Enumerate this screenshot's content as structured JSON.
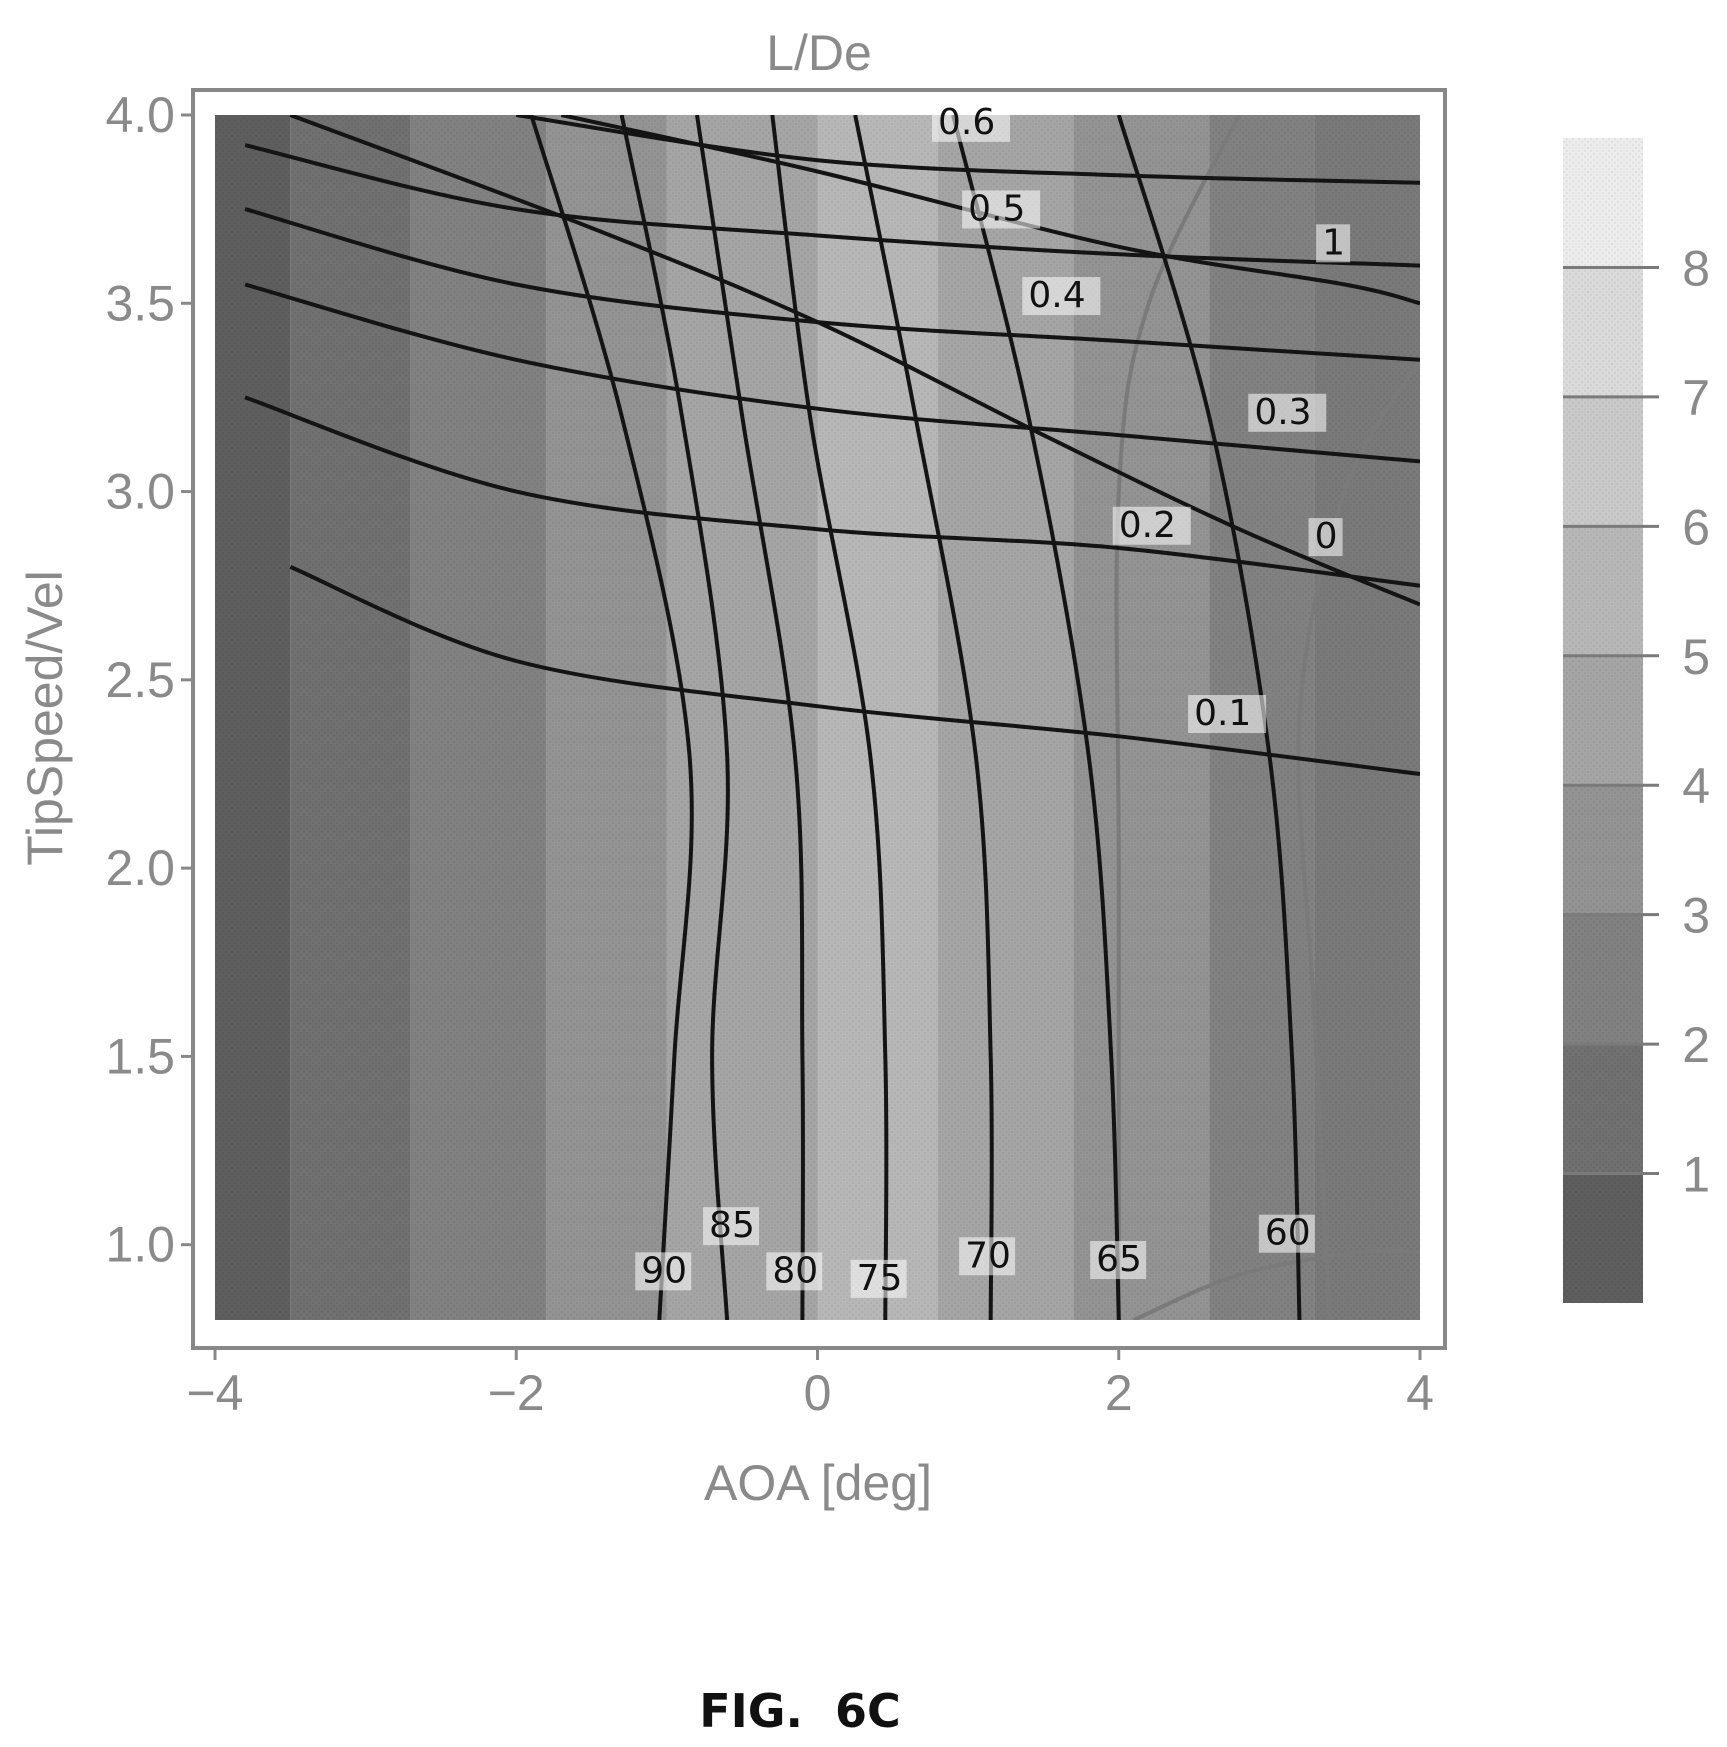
{
  "chart_data": {
    "type": "contour",
    "title": "L/De",
    "xlabel": "AOA [deg]",
    "ylabel": "TipSpeed/Vel",
    "xlim": [
      -4,
      4
    ],
    "ylim": [
      0.8,
      4.0
    ],
    "x_ticks": [
      "−4",
      "−2",
      "0",
      "2",
      "4"
    ],
    "x_tick_values": [
      -4,
      -2,
      0,
      2,
      4
    ],
    "y_ticks": [
      "1.0",
      "1.5",
      "2.0",
      "2.5",
      "3.0",
      "3.5",
      "4.0"
    ],
    "y_tick_values": [
      1.0,
      1.5,
      2.0,
      2.5,
      3.0,
      3.5,
      4.0
    ],
    "filled_field": {
      "name": "L/De",
      "bands": [
        {
          "x_from": -4.0,
          "x_to": -3.5,
          "level": 0.5
        },
        {
          "x_from": -3.5,
          "x_to": -2.7,
          "level": 1.5
        },
        {
          "x_from": -2.7,
          "x_to": -1.8,
          "level": 2.5
        },
        {
          "x_from": -1.8,
          "x_to": -1.0,
          "level": 3.5
        },
        {
          "x_from": -1.0,
          "x_to": 0.0,
          "level": 4.5
        },
        {
          "x_from": 0.0,
          "x_to": 0.8,
          "level": 5.5
        },
        {
          "x_from": 0.8,
          "x_to": 1.7,
          "level": 4.5
        },
        {
          "x_from": 1.7,
          "x_to": 2.6,
          "level": 3.5
        },
        {
          "x_from": 2.6,
          "x_to": 3.3,
          "level": 2.5
        },
        {
          "x_from": 3.3,
          "x_to": 4.0,
          "level": 2.0
        }
      ]
    },
    "colorbar": {
      "ticks": [
        "1",
        "2",
        "3",
        "4",
        "5",
        "6",
        "7",
        "8"
      ],
      "tick_values": [
        1,
        2,
        3,
        4,
        5,
        6,
        7,
        8
      ],
      "range": [
        0,
        9
      ]
    },
    "contour_sets": [
      {
        "kind": "near-vertical",
        "levels": [
          {
            "label": "90",
            "points": [
              [
                -1.05,
                0.8
              ],
              [
                -0.95,
                1.5
              ],
              [
                -0.85,
                2.3
              ],
              [
                -1.3,
                3.2
              ],
              [
                -1.9,
                4.0
              ]
            ],
            "label_at": [
              -1.17,
              0.9
            ]
          },
          {
            "label": "85",
            "points": [
              [
                -0.6,
                0.8
              ],
              [
                -0.7,
                1.5
              ],
              [
                -0.6,
                2.3
              ],
              [
                -0.9,
                3.2
              ],
              [
                -1.3,
                4.0
              ]
            ],
            "label_at": [
              -0.72,
              1.02
            ]
          },
          {
            "label": "80",
            "points": [
              [
                -0.1,
                0.8
              ],
              [
                -0.1,
                1.5
              ],
              [
                -0.15,
                2.3
              ],
              [
                -0.5,
                3.2
              ],
              [
                -0.8,
                4.0
              ]
            ],
            "label_at": [
              -0.3,
              0.9
            ]
          },
          {
            "label": "75",
            "points": [
              [
                0.45,
                0.8
              ],
              [
                0.45,
                1.5
              ],
              [
                0.35,
                2.3
              ],
              [
                -0.05,
                3.2
              ],
              [
                -0.3,
                4.0
              ]
            ],
            "label_at": [
              0.26,
              0.88
            ]
          },
          {
            "label": "70",
            "points": [
              [
                1.15,
                0.8
              ],
              [
                1.15,
                1.5
              ],
              [
                1.05,
                2.3
              ],
              [
                0.65,
                3.2
              ],
              [
                0.25,
                4.0
              ]
            ],
            "label_at": [
              0.98,
              0.94
            ]
          },
          {
            "label": "65",
            "points": [
              [
                2.0,
                0.8
              ],
              [
                1.95,
                1.5
              ],
              [
                1.8,
                2.3
              ],
              [
                1.4,
                3.2
              ],
              [
                0.9,
                4.0
              ]
            ],
            "label_at": [
              1.85,
              0.93
            ]
          },
          {
            "label": "60",
            "points": [
              [
                3.2,
                0.8
              ],
              [
                3.15,
                1.5
              ],
              [
                3.0,
                2.3
              ],
              [
                2.6,
                3.2
              ],
              [
                2.0,
                4.0
              ]
            ],
            "label_at": [
              2.97,
              1.0
            ]
          }
        ]
      },
      {
        "kind": "near-horizontal",
        "levels": [
          {
            "label": "0",
            "points": [
              [
                -3.5,
                4.0
              ],
              [
                -1.5,
                3.7
              ],
              [
                0.0,
                3.45
              ],
              [
                1.5,
                3.15
              ],
              [
                2.8,
                2.9
              ],
              [
                4.0,
                2.7
              ]
            ],
            "label_at": [
              3.3,
              2.85
            ]
          },
          {
            "label": "0.1",
            "points": [
              [
                -3.5,
                2.8
              ],
              [
                -2.0,
                2.55
              ],
              [
                0.0,
                2.43
              ],
              [
                2.0,
                2.35
              ],
              [
                4.0,
                2.25
              ]
            ],
            "label_at": [
              2.5,
              2.38
            ]
          },
          {
            "label": "0.2",
            "points": [
              [
                -3.8,
                3.25
              ],
              [
                -2.0,
                3.0
              ],
              [
                0.0,
                2.9
              ],
              [
                2.0,
                2.85
              ],
              [
                4.0,
                2.75
              ]
            ],
            "label_at": [
              2.0,
              2.88
            ]
          },
          {
            "label": "0.3",
            "points": [
              [
                -3.8,
                3.55
              ],
              [
                -2.0,
                3.35
              ],
              [
                0.0,
                3.22
              ],
              [
                2.0,
                3.15
              ],
              [
                4.0,
                3.08
              ]
            ],
            "label_at": [
              2.9,
              3.18
            ]
          },
          {
            "label": "0.4",
            "points": [
              [
                -3.8,
                3.75
              ],
              [
                -2.0,
                3.55
              ],
              [
                0.0,
                3.45
              ],
              [
                2.0,
                3.4
              ],
              [
                4.0,
                3.35
              ]
            ],
            "label_at": [
              1.4,
              3.49
            ]
          },
          {
            "label": "0.5",
            "points": [
              [
                -3.8,
                3.92
              ],
              [
                -2.0,
                3.75
              ],
              [
                0.0,
                3.68
              ],
              [
                2.0,
                3.63
              ],
              [
                4.0,
                3.6
              ]
            ],
            "label_at": [
              1.0,
              3.72
            ]
          },
          {
            "label": "0.6",
            "points": [
              [
                -2.0,
                4.0
              ],
              [
                0.0,
                3.88
              ],
              [
                2.0,
                3.84
              ],
              [
                4.0,
                3.82
              ]
            ],
            "label_at": [
              0.8,
              3.95
            ]
          },
          {
            "label": "1",
            "points": [
              [
                -1.7,
                4.0
              ],
              [
                0.0,
                3.85
              ],
              [
                2.0,
                3.65
              ],
              [
                3.5,
                3.55
              ],
              [
                4.0,
                3.5
              ]
            ],
            "label_at": [
              3.35,
              3.63
            ]
          }
        ]
      }
    ],
    "lobes": [
      {
        "points": [
          [
            2.1,
            0.8
          ],
          [
            2.8,
            0.92
          ],
          [
            3.6,
            0.98
          ],
          [
            4.0,
            0.98
          ]
        ]
      },
      {
        "points": [
          [
            4.0,
            3.35
          ],
          [
            3.5,
            3.0
          ],
          [
            3.2,
            2.4
          ],
          [
            3.3,
            1.6
          ],
          [
            3.4,
            0.8
          ]
        ]
      },
      {
        "points": [
          [
            2.8,
            4.0
          ],
          [
            2.2,
            3.5
          ],
          [
            2.0,
            3.0
          ],
          [
            2.0,
            2.0
          ],
          [
            2.0,
            0.8
          ]
        ]
      }
    ],
    "figure_caption": "FIG.  6C",
    "colors": {
      "background": "#ffffff",
      "frame": "#888888",
      "axis_text": "#8a8a8a",
      "contour_dark": "#141414",
      "contour_grey": "#7a7a7a",
      "band_darkest": "#555555",
      "band_lightest": "#f4f4f4"
    }
  }
}
